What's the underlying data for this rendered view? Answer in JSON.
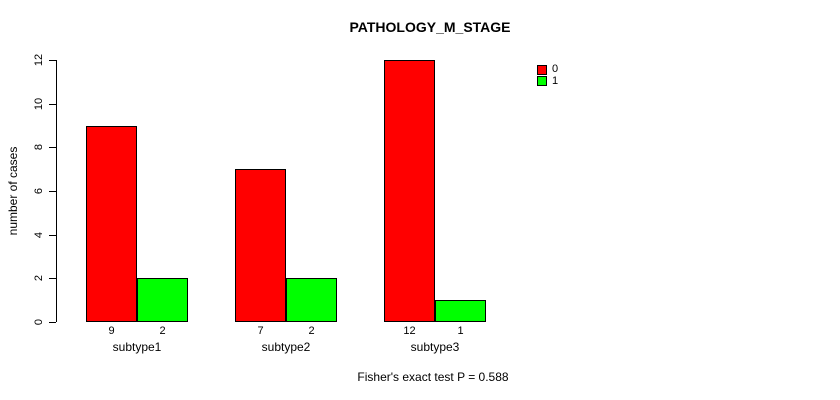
{
  "chart_data": {
    "type": "bar",
    "title": "PATHOLOGY_M_STAGE",
    "xlabel": "",
    "ylabel": "number of cases",
    "categories": [
      "subtype1",
      "subtype2",
      "subtype3"
    ],
    "series": [
      {
        "name": "0",
        "color": "#ff0000",
        "values": [
          9,
          7,
          12
        ]
      },
      {
        "name": "1",
        "color": "#00ff00",
        "values": [
          2,
          2,
          1
        ]
      }
    ],
    "bar_count_labels": [
      [
        "9",
        "2"
      ],
      [
        "7",
        "2"
      ],
      [
        "12",
        "1"
      ]
    ],
    "ylim": [
      0,
      12
    ],
    "y_ticks": [
      "0",
      "2",
      "4",
      "6",
      "8",
      "10",
      "12"
    ],
    "grid": false,
    "legend": {
      "position": "top-right",
      "entries": [
        {
          "label": "0",
          "color": "#ff0000"
        },
        {
          "label": "1",
          "color": "#00ff00"
        }
      ]
    },
    "annotation": "Fisher's exact test P = 0.588"
  }
}
